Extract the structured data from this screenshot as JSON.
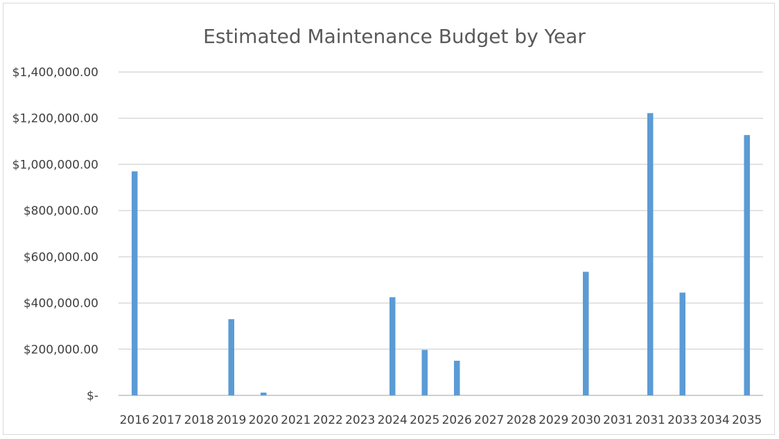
{
  "chart_data": {
    "type": "bar",
    "title": "Estimated Maintenance Budget by Year",
    "xlabel": "",
    "ylabel": "",
    "categories": [
      "2016",
      "2017",
      "2018",
      "2019",
      "2020",
      "2021",
      "2022",
      "2023",
      "2024",
      "2025",
      "2026",
      "2027",
      "2028",
      "2029",
      "2030",
      "2031",
      "2031",
      "2033",
      "2034",
      "2035"
    ],
    "values": [
      970000,
      0,
      0,
      330000,
      12000,
      0,
      0,
      0,
      425000,
      197000,
      150000,
      0,
      0,
      0,
      535000,
      0,
      1222000,
      445000,
      0,
      1127000
    ],
    "y_ticks": [
      0,
      200000,
      400000,
      600000,
      800000,
      1000000,
      1200000,
      1400000
    ],
    "y_tick_labels": [
      "$-",
      "$200,000.00",
      "$400,000.00",
      "$600,000.00",
      "$800,000.00",
      "$1,000,000.00",
      "$1,200,000.00",
      "$1,400,000.00"
    ],
    "ylim": [
      0,
      1400000
    ],
    "grid": true,
    "legend": "none",
    "bar_color": "#5b9bd5",
    "grid_color": "#d9d9d9"
  }
}
